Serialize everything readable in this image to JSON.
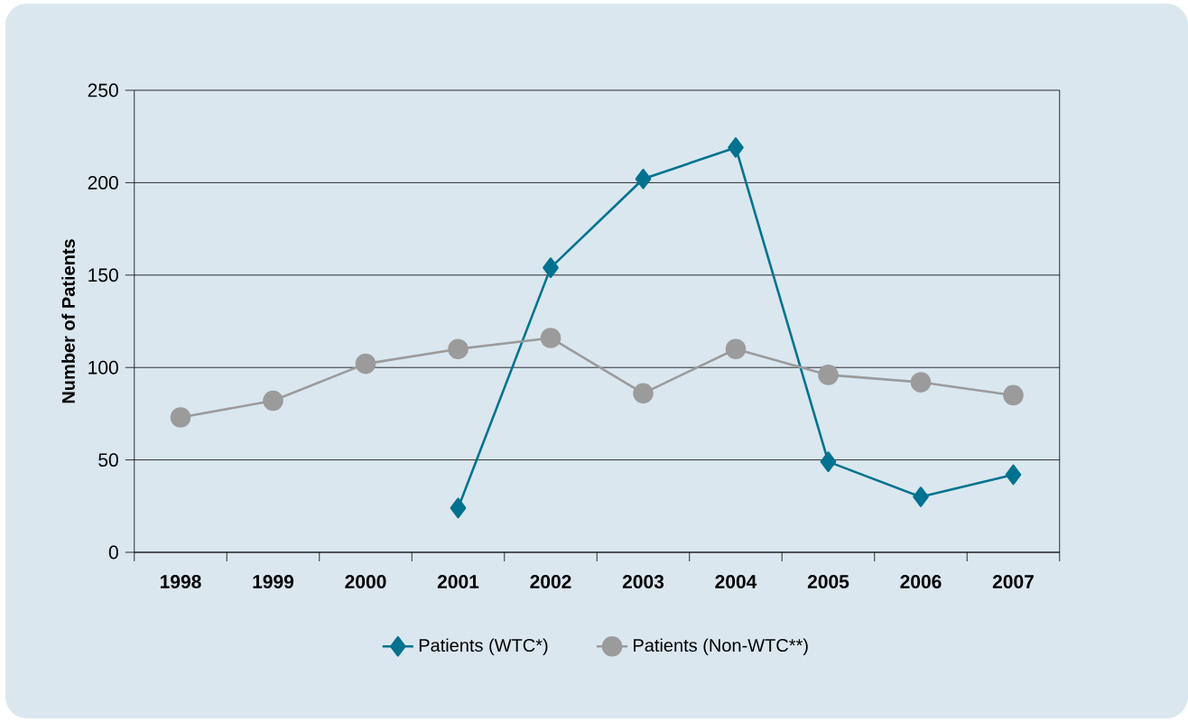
{
  "chart_data": {
    "type": "line",
    "ylabel": "Number of Patients",
    "categories": [
      "1998",
      "1999",
      "2000",
      "2001",
      "2002",
      "2003",
      "2004",
      "2005",
      "2006",
      "2007"
    ],
    "series": [
      {
        "name": "Patients (WTC*)",
        "color": "#00728f",
        "marker": "diamond",
        "values": [
          null,
          null,
          null,
          24,
          154,
          202,
          219,
          49,
          30,
          42
        ]
      },
      {
        "name": "Patients (Non-WTC**)",
        "color": "#9b9b9b",
        "marker": "circle",
        "values": [
          73,
          82,
          102,
          110,
          116,
          86,
          110,
          96,
          92,
          85
        ]
      }
    ],
    "ylim": [
      0,
      250
    ],
    "yticks": [
      0,
      50,
      100,
      150,
      200,
      250
    ],
    "grid": "y",
    "legend": "bottom",
    "line_style": "solid"
  }
}
